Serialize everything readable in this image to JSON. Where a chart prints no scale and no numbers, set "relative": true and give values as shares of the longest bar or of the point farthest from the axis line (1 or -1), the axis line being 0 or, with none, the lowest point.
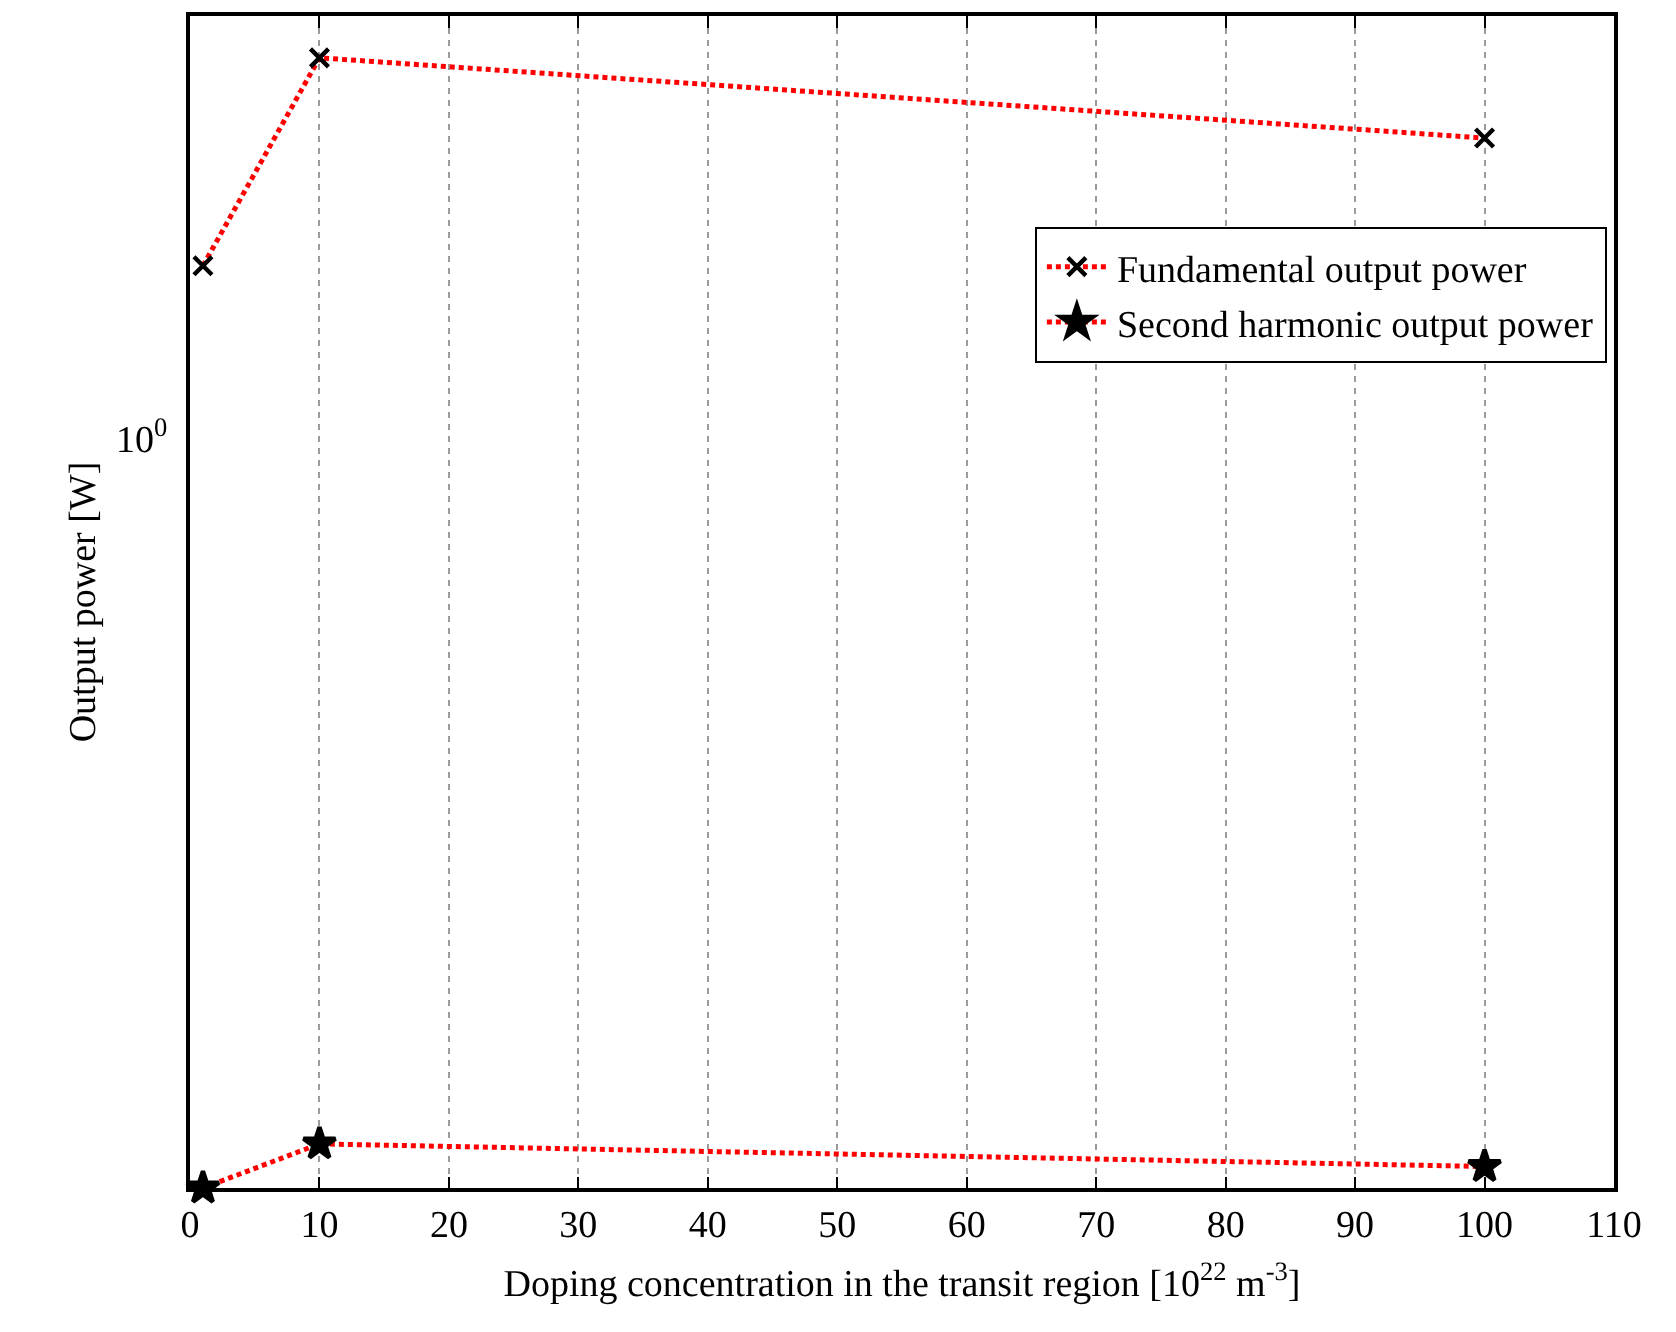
{
  "chart_data": {
    "type": "line",
    "xlabel": "Doping concentration in the transit region [10$^{22}$ m$^{-3}$]",
    "ylabel": "Output power [W]",
    "annotations": [
      "10$^{0}$"
    ],
    "x": [
      1,
      10,
      100
    ],
    "series": [
      {
        "name": "Fundamental output power",
        "color": "#ff0000",
        "values": [
          0.816,
          1,
          0.929
        ],
        "marker": "cross"
      },
      {
        "name": "Second harmonic output power",
        "color": "#ff0000",
        "values": [
          0,
          0.039,
          0.019
        ],
        "marker": "star"
      }
    ],
    "relative": true,
    "xlim": [
      0,
      110
    ],
    "xticks": [
      0,
      10,
      20,
      30,
      40,
      50,
      60,
      70,
      80,
      90,
      100,
      110
    ],
    "grid": "x",
    "legend": "top right",
    "line_style": "dotted"
  }
}
